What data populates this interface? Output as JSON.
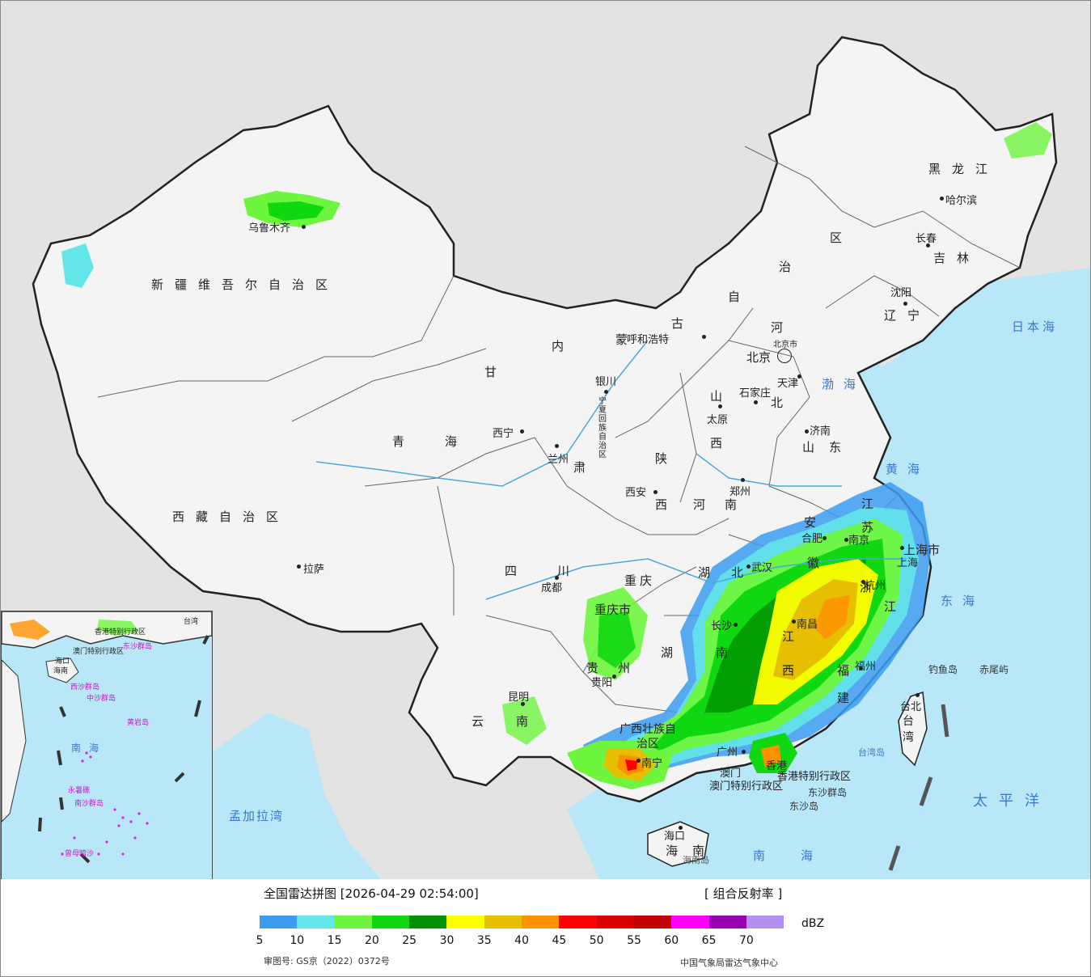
{
  "legend": {
    "title": "全国雷达拼图 [2026-04-29 02:54:00]",
    "product": "[ 组合反射率 ]",
    "unit": "dBZ",
    "colors": [
      "#3b9cf0",
      "#63e6ea",
      "#6ef53e",
      "#10d810",
      "#009000",
      "#ffff00",
      "#e6c000",
      "#ff9000",
      "#ff0000",
      "#d80000",
      "#c00000",
      "#ff00ff",
      "#9900b0",
      "#b090f0"
    ],
    "ticks": [
      "5",
      "10",
      "15",
      "20",
      "25",
      "30",
      "35",
      "40",
      "45",
      "50",
      "55",
      "60",
      "65",
      "70"
    ],
    "approval": "审图号: GS京（2022）0372号",
    "agency": "中国气象局雷达气象中心"
  },
  "map": {
    "provinces": [
      "新疆维吾尔自治区",
      "西藏自治区",
      "青海",
      "甘",
      "肃",
      "内",
      "蒙",
      "古",
      "自",
      "治",
      "区",
      "黑龙江",
      "吉林",
      "辽宁",
      "河",
      "北",
      "山",
      "西",
      "陕",
      "西",
      "四川",
      "云南",
      "贵州",
      "湖",
      "南",
      "湖",
      "北",
      "河南",
      "山东",
      "安",
      "徽",
      "江",
      "苏",
      "浙",
      "江",
      "江",
      "西",
      "福",
      "建",
      "广西壮族自治区",
      "海南"
    ],
    "cities": [
      "乌鲁木齐",
      "拉萨",
      "西宁",
      "兰州",
      "银川",
      "呼和浩特",
      "北京",
      "北京市",
      "天津",
      "石家庄",
      "太原",
      "济南",
      "郑州",
      "西安",
      "成都",
      "重庆",
      "重庆市",
      "武汉",
      "合肥",
      "南京",
      "上海",
      "上海市",
      "杭州",
      "南昌",
      "长沙",
      "福州",
      "台北",
      "贵阳",
      "昆明",
      "南宁",
      "广州",
      "澳门",
      "香港",
      "海口",
      "哈尔滨",
      "长春",
      "沈阳",
      "宁夏回族自治区",
      "香港特别行政区",
      "澳门特别行政区",
      "台湾",
      "台湾岛",
      "海南岛",
      "钓鱼岛",
      "赤尾屿",
      "东沙群岛",
      "东沙岛"
    ],
    "seas": [
      "日本海",
      "渤海",
      "黄海",
      "东海",
      "南海",
      "太平洋",
      "孟加拉湾"
    ],
    "inset_labels": [
      "南海",
      "海南",
      "东沙群岛",
      "西沙群岛",
      "中沙群岛",
      "黄岩岛",
      "南沙群岛",
      "曾母暗沙",
      "香港特别行政区",
      "澳门特别行政区",
      "台湾",
      "永暑礁",
      "海口"
    ]
  }
}
